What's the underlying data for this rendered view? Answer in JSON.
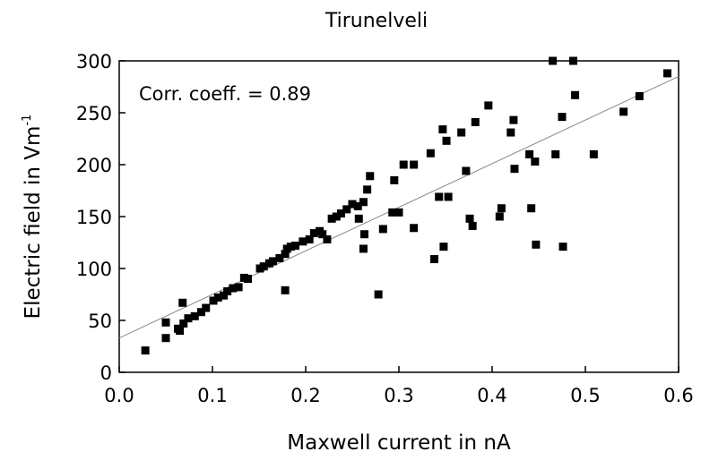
{
  "chart_data": {
    "type": "scatter",
    "title": "Tirunelveli",
    "x_label": "Maxwell current in nA",
    "y_label": {
      "text": "Electric field in Vm",
      "superscript": "-1"
    },
    "annotation": "Corr. coeff. = 0.89",
    "color": "#000000",
    "xlim": [
      0,
      0.6
    ],
    "xticks": [
      {
        "value": 0,
        "label": "0.0"
      },
      0.1,
      0.2,
      0.3,
      0.4,
      0.5,
      0.6
    ],
    "ylim": [
      0,
      300
    ],
    "yticks": [
      0,
      50,
      100,
      150,
      200,
      250,
      300
    ],
    "fit_line": {
      "x": [
        0,
        0.6
      ],
      "y": [
        33,
        285
      ],
      "color": "#888888"
    },
    "series": [
      {
        "name": "Tirunelveli",
        "x": [
          0.028,
          0.05,
          0.05,
          0.063,
          0.065,
          0.068,
          0.069,
          0.074,
          0.081,
          0.088,
          0.093,
          0.101,
          0.106,
          0.112,
          0.116,
          0.122,
          0.128,
          0.134,
          0.138,
          0.151,
          0.155,
          0.161,
          0.165,
          0.172,
          0.178,
          0.18,
          0.178,
          0.184,
          0.189,
          0.197,
          0.204,
          0.209,
          0.215,
          0.218,
          0.223,
          0.228,
          0.233,
          0.238,
          0.244,
          0.25,
          0.256,
          0.257,
          0.262,
          0.263,
          0.262,
          0.266,
          0.269,
          0.278,
          0.283,
          0.293,
          0.295,
          0.3,
          0.305,
          0.316,
          0.316,
          0.334,
          0.338,
          0.343,
          0.347,
          0.348,
          0.351,
          0.353,
          0.367,
          0.372,
          0.376,
          0.379,
          0.382,
          0.396,
          0.408,
          0.41,
          0.42,
          0.423,
          0.424,
          0.44,
          0.442,
          0.446,
          0.447,
          0.468,
          0.465,
          0.475,
          0.476,
          0.487,
          0.489,
          0.509,
          0.541,
          0.558,
          0.588
        ],
        "values": [
          21,
          48,
          33,
          42,
          40,
          67,
          47,
          52,
          54,
          58,
          62,
          69,
          72,
          74,
          78,
          81,
          82,
          91,
          90,
          100,
          102,
          105,
          107,
          110,
          114,
          119,
          79,
          121,
          122,
          126,
          128,
          134,
          136,
          133,
          128,
          148,
          150,
          153,
          157,
          162,
          160,
          148,
          164,
          133,
          119,
          176,
          189,
          75,
          138,
          154,
          185,
          154,
          200,
          200,
          139,
          211,
          109,
          169,
          234,
          121,
          223,
          169,
          231,
          194,
          148,
          141,
          241,
          257,
          150,
          158,
          231,
          243,
          196,
          210,
          158,
          203,
          123,
          210,
          300,
          246,
          121,
          300,
          267,
          210,
          251,
          266,
          288
        ]
      }
    ]
  }
}
